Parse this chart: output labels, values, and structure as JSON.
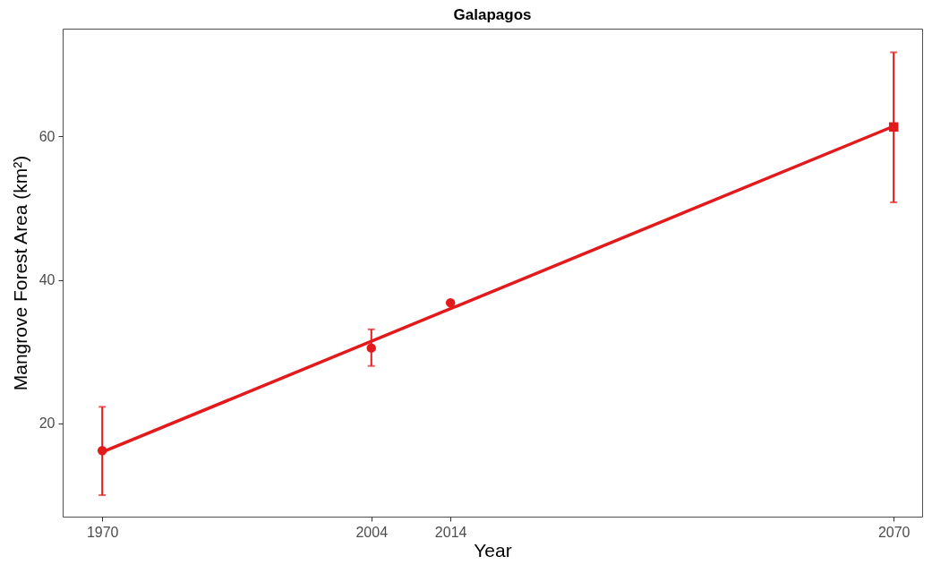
{
  "chart_data": {
    "type": "scatter",
    "title": "Galapagos",
    "xlabel": "Year",
    "ylabel": "Mangrove Forest Area (km²)",
    "xlim": [
      1965,
      2073.6
    ],
    "xticks": [
      1970,
      2004,
      2014,
      2070
    ],
    "ylim": [
      7,
      75
    ],
    "yticks": [
      20,
      40,
      60
    ],
    "grid": false,
    "series": [
      {
        "type": "line",
        "x": [
          1970,
          2070
        ],
        "values": [
          16.0,
          61.4
        ],
        "color": "#e31a1c",
        "marker": "none",
        "line_style": "solid"
      },
      {
        "type": "scatter",
        "x": [
          1970,
          2004,
          2014
        ],
        "values": [
          16.2,
          30.5,
          36.8
        ],
        "errors": [
          [
            10.0,
            22.3
          ],
          [
            28.0,
            33.1
          ],
          null
        ],
        "color": "#e31a1c",
        "marker": "circle"
      },
      {
        "type": "scatter",
        "x": [
          2070
        ],
        "values": [
          61.3
        ],
        "errors": [
          [
            50.8,
            71.7
          ]
        ],
        "color": "#e31a1c",
        "marker": "square"
      }
    ]
  }
}
